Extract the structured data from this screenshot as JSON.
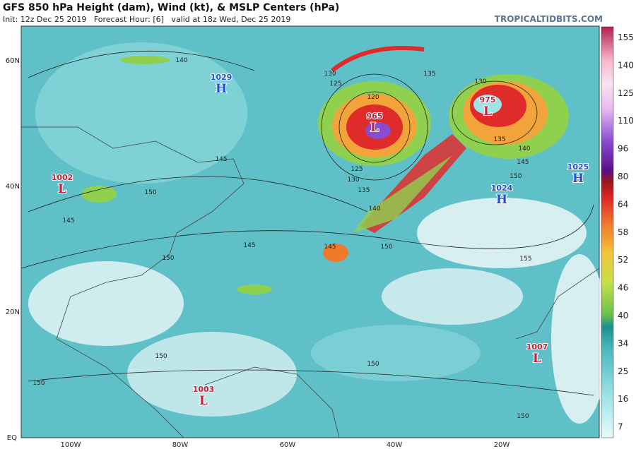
{
  "header": {
    "title": "GFS 850 hPa Height (dam), Wind (kt), & MSLP Centers (hPa)",
    "subtitle": "Init: 12z Dec 25 2019   Forecast Hour: [6]   valid at 18z Wed, Dec 25 2019",
    "site": "TROPICALTIDBITS.COM"
  },
  "axes": {
    "lat_labels": [
      "60N",
      "40N",
      "20N",
      "EQ"
    ],
    "lon_labels": [
      "100W",
      "80W",
      "60W",
      "40W",
      "20W"
    ]
  },
  "colorbar": {
    "labels": [
      "155",
      "140",
      "125",
      "110",
      "96",
      "80",
      "64",
      "58",
      "52",
      "46",
      "40",
      "34",
      "25",
      "16",
      "7"
    ]
  },
  "centers": [
    {
      "pressure": "1029",
      "symbol": "H"
    },
    {
      "pressure": "1002",
      "symbol": "L"
    },
    {
      "pressure": "965",
      "symbol": "L"
    },
    {
      "pressure": "975",
      "symbol": "L"
    },
    {
      "pressure": "1025",
      "symbol": "H"
    },
    {
      "pressure": "1024",
      "symbol": "H"
    },
    {
      "pressure": "1007",
      "symbol": "L"
    },
    {
      "pressure": "1003",
      "symbol": "L"
    }
  ],
  "contour_labels": [
    "130",
    "125",
    "120",
    "135",
    "130",
    "135",
    "140",
    "145",
    "150",
    "125",
    "130",
    "135",
    "140",
    "145",
    "150",
    "155",
    "150",
    "145",
    "150",
    "150",
    "150",
    "140",
    "145",
    "150",
    "145",
    "150"
  ]
}
